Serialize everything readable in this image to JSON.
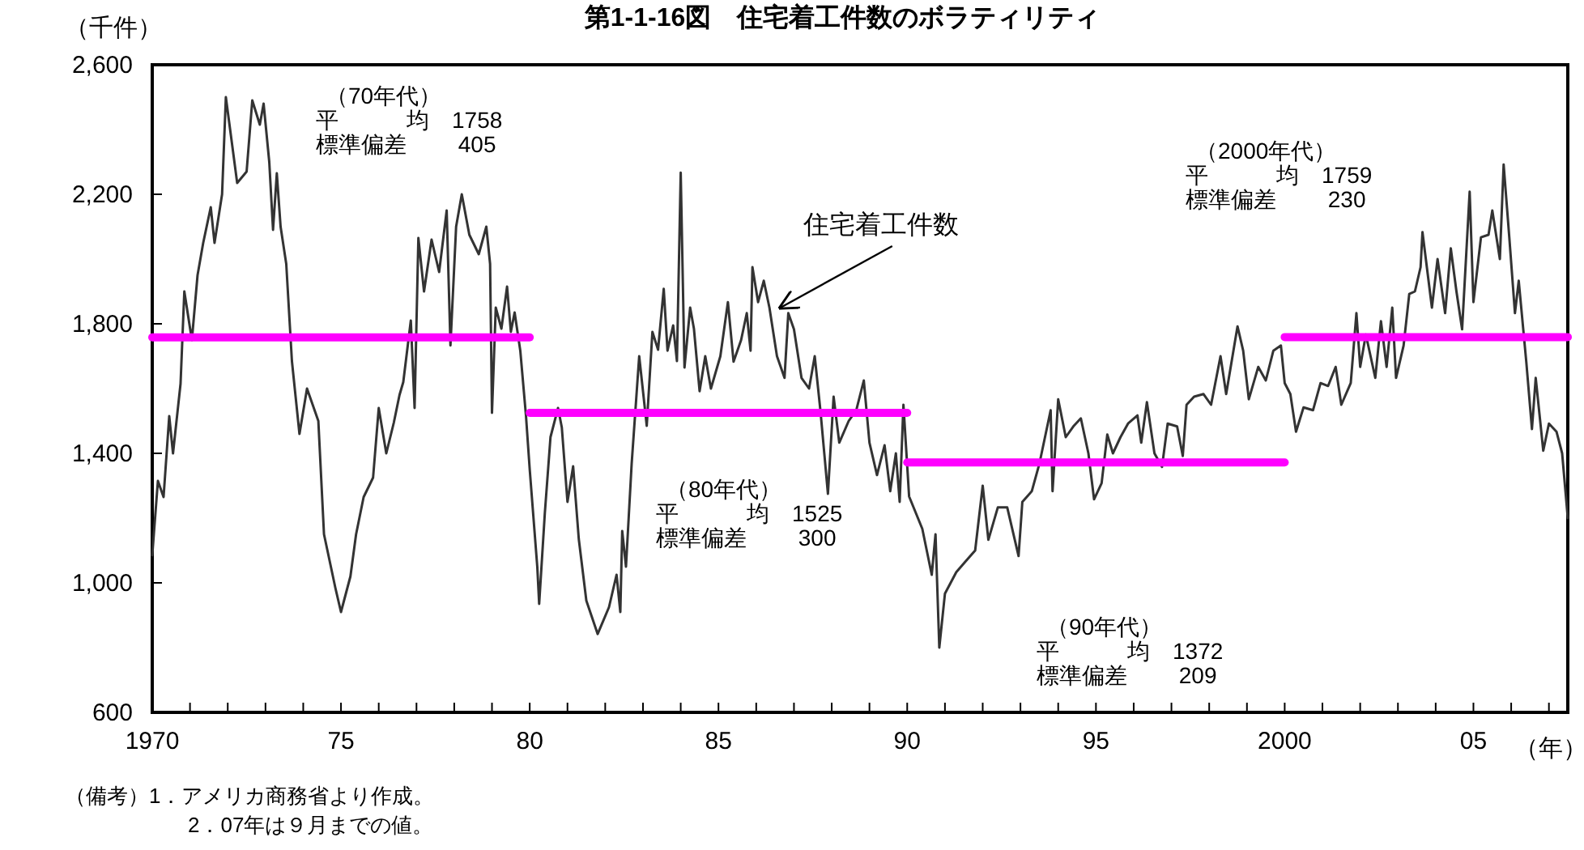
{
  "chart_data": {
    "type": "line",
    "title": "第1-1-16図　住宅着工件数のボラティリティ",
    "ylabel": "（千件）",
    "xlabel": "（年）",
    "xlim": [
      1970,
      2007.5
    ],
    "xticks": [
      {
        "value": 1970,
        "label": "1970"
      },
      {
        "value": 1971,
        "label": null
      },
      {
        "value": 1972,
        "label": null
      },
      {
        "value": 1973,
        "label": null
      },
      {
        "value": 1974,
        "label": null
      },
      {
        "value": 1975,
        "label": "75"
      },
      {
        "value": 1976,
        "label": null
      },
      {
        "value": 1977,
        "label": null
      },
      {
        "value": 1978,
        "label": null
      },
      {
        "value": 1979,
        "label": null
      },
      {
        "value": 1980,
        "label": "80"
      },
      {
        "value": 1981,
        "label": null
      },
      {
        "value": 1982,
        "label": null
      },
      {
        "value": 1983,
        "label": null
      },
      {
        "value": 1984,
        "label": null
      },
      {
        "value": 1985,
        "label": "85"
      },
      {
        "value": 1986,
        "label": null
      },
      {
        "value": 1987,
        "label": null
      },
      {
        "value": 1988,
        "label": null
      },
      {
        "value": 1989,
        "label": null
      },
      {
        "value": 1990,
        "label": "90"
      },
      {
        "value": 1991,
        "label": null
      },
      {
        "value": 1992,
        "label": null
      },
      {
        "value": 1993,
        "label": null
      },
      {
        "value": 1994,
        "label": null
      },
      {
        "value": 1995,
        "label": "95"
      },
      {
        "value": 1996,
        "label": null
      },
      {
        "value": 1997,
        "label": null
      },
      {
        "value": 1998,
        "label": null
      },
      {
        "value": 1999,
        "label": null
      },
      {
        "value": 2000,
        "label": "2000"
      },
      {
        "value": 2001,
        "label": null
      },
      {
        "value": 2002,
        "label": null
      },
      {
        "value": 2003,
        "label": null
      },
      {
        "value": 2004,
        "label": null
      },
      {
        "value": 2005,
        "label": "05"
      },
      {
        "value": 2006,
        "label": null
      },
      {
        "value": 2007,
        "label": null
      }
    ],
    "ylim": [
      600,
      2600
    ],
    "yticks": [
      {
        "value": 600,
        "label": "600"
      },
      {
        "value": 1000,
        "label": "1,000"
      },
      {
        "value": 1400,
        "label": "1,400"
      },
      {
        "value": 1800,
        "label": "1,800"
      },
      {
        "value": 2200,
        "label": "2,200"
      },
      {
        "value": 2600,
        "label": "2,600"
      }
    ],
    "grid": false,
    "marker": "none",
    "line_style": "solid",
    "series": [
      {
        "color": "#333333",
        "x": [
          1970.0,
          1970.15,
          1970.3,
          1970.45,
          1970.55,
          1970.75,
          1970.85,
          1971.05,
          1971.2,
          1971.35,
          1971.55,
          1971.65,
          1971.85,
          1971.95,
          1972.25,
          1972.5,
          1972.65,
          1972.85,
          1972.95,
          1973.1,
          1973.2,
          1973.3,
          1973.4,
          1973.55,
          1973.7,
          1973.9,
          1974.1,
          1974.4,
          1974.55,
          1974.85,
          1975.0,
          1975.25,
          1975.4,
          1975.6,
          1975.85,
          1976.0,
          1976.2,
          1976.4,
          1976.55,
          1976.65,
          1976.85,
          1976.95,
          1977.05,
          1977.2,
          1977.4,
          1977.6,
          1977.8,
          1977.9,
          1978.05,
          1978.2,
          1978.4,
          1978.65,
          1978.85,
          1978.95,
          1979.0,
          1979.1,
          1979.25,
          1979.4,
          1979.5,
          1979.6,
          1979.75,
          1979.9,
          1980.0,
          1980.2,
          1980.25,
          1980.4,
          1980.55,
          1980.75,
          1980.85,
          1981.0,
          1981.15,
          1981.3,
          1981.5,
          1981.8,
          1982.1,
          1982.3,
          1982.4,
          1982.45,
          1982.55,
          1982.7,
          1982.9,
          1983.1,
          1983.25,
          1983.4,
          1983.55,
          1983.65,
          1983.8,
          1983.9,
          1984.0,
          1984.1,
          1984.25,
          1984.35,
          1984.5,
          1984.65,
          1984.8,
          1985.05,
          1985.25,
          1985.4,
          1985.6,
          1985.75,
          1985.85,
          1985.9,
          1986.05,
          1986.2,
          1986.35,
          1986.55,
          1986.75,
          1986.85,
          1987.0,
          1987.2,
          1987.4,
          1987.55,
          1987.7,
          1987.9,
          1988.05,
          1988.2,
          1988.45,
          1988.65,
          1988.85,
          1989.0,
          1989.2,
          1989.4,
          1989.55,
          1989.7,
          1989.8,
          1989.9,
          1990.05,
          1990.4,
          1990.65,
          1990.75,
          1990.85,
          1991.0,
          1991.3,
          1991.55,
          1991.8,
          1992.0,
          1992.15,
          1992.4,
          1992.65,
          1992.95,
          1993.05,
          1993.3,
          1993.5,
          1993.8,
          1993.85,
          1994.0,
          1994.2,
          1994.4,
          1994.6,
          1994.8,
          1994.95,
          1995.15,
          1995.3,
          1995.45,
          1995.65,
          1995.85,
          1996.1,
          1996.2,
          1996.35,
          1996.55,
          1996.75,
          1996.9,
          1997.15,
          1997.3,
          1997.4,
          1997.6,
          1997.85,
          1998.05,
          1998.3,
          1998.45,
          1998.75,
          1998.9,
          1999.05,
          1999.3,
          1999.5,
          1999.7,
          1999.9,
          2000.0,
          2000.15,
          2000.3,
          2000.5,
          2000.75,
          2000.95,
          2001.15,
          2001.35,
          2001.5,
          2001.75,
          2001.9,
          2002.0,
          2002.15,
          2002.4,
          2002.55,
          2002.7,
          2002.85,
          2002.95,
          2003.15,
          2003.3,
          2003.45,
          2003.6,
          2003.65,
          2003.9,
          2004.05,
          2004.25,
          2004.4,
          2004.55,
          2004.7,
          2004.9,
          2005.0,
          2005.2,
          2005.4,
          2005.5,
          2005.7,
          2005.8,
          2005.95,
          2006.1,
          2006.2,
          2006.4,
          2006.55,
          2006.65,
          2006.85,
          2007.0,
          2007.2,
          2007.35,
          2007.5
        ],
        "values": [
          1085,
          1315,
          1265,
          1515,
          1400,
          1615,
          1900,
          1750,
          1950,
          2050,
          2160,
          2050,
          2200,
          2500,
          2235,
          2270,
          2490,
          2415,
          2480,
          2300,
          2090,
          2265,
          2100,
          1985,
          1685,
          1460,
          1600,
          1500,
          1150,
          985,
          910,
          1020,
          1150,
          1265,
          1325,
          1540,
          1400,
          1495,
          1580,
          1620,
          1810,
          1540,
          2065,
          1900,
          2060,
          1960,
          2150,
          1733,
          2100,
          2200,
          2075,
          2015,
          2100,
          1985,
          1525,
          1850,
          1785,
          1915,
          1775,
          1835,
          1717,
          1517,
          1350,
          1050,
          935,
          1215,
          1450,
          1540,
          1480,
          1250,
          1360,
          1135,
          945,
          842,
          925,
          1025,
          910,
          1160,
          1050,
          1367,
          1700,
          1485,
          1775,
          1720,
          1908,
          1717,
          1795,
          1685,
          2267,
          1665,
          1850,
          1785,
          1592,
          1700,
          1600,
          1700,
          1867,
          1683,
          1750,
          1833,
          1717,
          1975,
          1867,
          1933,
          1850,
          1700,
          1633,
          1833,
          1783,
          1633,
          1600,
          1700,
          1533,
          1275,
          1575,
          1433,
          1500,
          1533,
          1625,
          1433,
          1333,
          1425,
          1283,
          1400,
          1250,
          1550,
          1267,
          1167,
          1025,
          1150,
          800,
          967,
          1033,
          1067,
          1100,
          1300,
          1133,
          1233,
          1233,
          1083,
          1250,
          1283,
          1367,
          1533,
          1283,
          1567,
          1450,
          1483,
          1508,
          1400,
          1258,
          1308,
          1458,
          1400,
          1450,
          1492,
          1517,
          1433,
          1558,
          1400,
          1358,
          1492,
          1483,
          1392,
          1550,
          1575,
          1583,
          1550,
          1700,
          1583,
          1792,
          1717,
          1567,
          1667,
          1625,
          1717,
          1733,
          1617,
          1583,
          1467,
          1542,
          1533,
          1617,
          1608,
          1667,
          1550,
          1617,
          1833,
          1667,
          1767,
          1633,
          1808,
          1667,
          1850,
          1633,
          1733,
          1892,
          1900,
          1975,
          2083,
          1850,
          2000,
          1833,
          2033,
          1900,
          1783,
          2208,
          1867,
          2067,
          2075,
          2150,
          2000,
          2292,
          2067,
          1833,
          1933,
          1683,
          1475,
          1633,
          1408,
          1492,
          1467,
          1400,
          1200
        ]
      },
      {
        "type": "line",
        "color": "#ff00ff",
        "x": [
          1970,
          1980
        ],
        "values": [
          1758,
          1758
        ]
      },
      {
        "type": "line",
        "color": "#ff00ff",
        "x": [
          1980,
          1990
        ],
        "values": [
          1525,
          1525
        ]
      },
      {
        "type": "line",
        "color": "#ff00ff",
        "x": [
          1990,
          2000
        ],
        "values": [
          1372,
          1372
        ]
      },
      {
        "type": "line",
        "color": "#ff00ff",
        "x": [
          2000,
          2007.5
        ],
        "values": [
          1759,
          1759
        ]
      }
    ],
    "annotations": [
      "（70年代）",
      "平　　　均　1758",
      "標準偏差　　 405",
      "（80年代）",
      "平　　　均　1525",
      "標準偏差　　 300",
      "（90年代）",
      "平　　　均　1372",
      "標準偏差　　 209",
      "（2000年代）",
      "平　　　均　1759",
      "標準偏差　　 230",
      {
        "text": "住宅着工件数",
        "x": 1986.6,
        "y": 1840
      },
      "（備考）1．アメリカ商務省より作成。",
      "2．07年は９月までの値。"
    ]
  }
}
